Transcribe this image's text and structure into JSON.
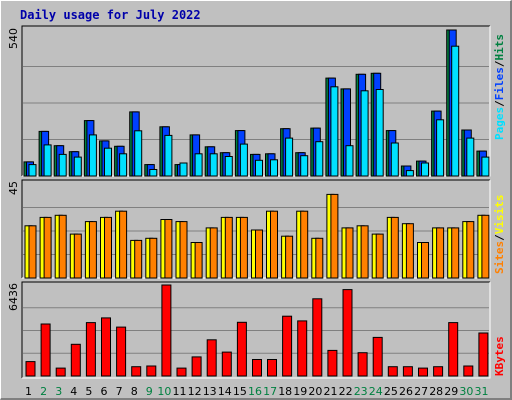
{
  "title": "Daily usage for July 2022",
  "colors": {
    "hits": "#008040",
    "files": "#0040ff",
    "pages": "#00e0ff",
    "visits": "#ffff00",
    "sites": "#ff8000",
    "kbytes": "#ff0000",
    "weekend_label": "#008040",
    "weekday_label": "#000000"
  },
  "chart_data": [
    {
      "type": "bar",
      "panel": "top",
      "ymax_label": "540",
      "ylim": [
        0,
        540
      ],
      "legend": [
        "Pages",
        "/",
        "Files",
        "/",
        "Hits"
      ],
      "categories": [
        "1",
        "2",
        "3",
        "4",
        "5",
        "6",
        "7",
        "8",
        "9",
        "10",
        "11",
        "12",
        "13",
        "14",
        "15",
        "16",
        "17",
        "18",
        "19",
        "20",
        "21",
        "22",
        "23",
        "24",
        "25",
        "26",
        "27",
        "28",
        "29",
        "30",
        "31"
      ],
      "weekend": [
        "2",
        "3",
        "9",
        "10",
        "16",
        "17",
        "23",
        "24",
        "30",
        "31"
      ],
      "series": [
        {
          "name": "Hits",
          "values": [
            52,
            165,
            112,
            90,
            205,
            130,
            110,
            237,
            42,
            182,
            42,
            152,
            108,
            86,
            168,
            80,
            82,
            175,
            86,
            177,
            362,
            322,
            376,
            380,
            168,
            37,
            55,
            240,
            540,
            170,
            92
          ]
        },
        {
          "name": "Files",
          "values": [
            52,
            165,
            112,
            90,
            205,
            130,
            110,
            237,
            42,
            182,
            42,
            152,
            108,
            86,
            168,
            80,
            82,
            175,
            86,
            177,
            362,
            322,
            376,
            380,
            168,
            37,
            55,
            240,
            540,
            170,
            92
          ]
        },
        {
          "name": "Pages",
          "values": [
            42,
            115,
            80,
            70,
            152,
            103,
            82,
            167,
            24,
            150,
            48,
            82,
            82,
            72,
            118,
            58,
            60,
            140,
            75,
            127,
            330,
            112,
            315,
            320,
            122,
            20,
            48,
            208,
            480,
            140,
            70
          ]
        }
      ]
    },
    {
      "type": "bar",
      "panel": "middle",
      "ymax_label": "45",
      "ylim": [
        0,
        45
      ],
      "legend": [
        "Sites",
        "/",
        "Visits"
      ],
      "series": [
        {
          "name": "Visits",
          "values": [
            25,
            29,
            30,
            21,
            27,
            29,
            32,
            18,
            19,
            28,
            27,
            17,
            24,
            29,
            29,
            23,
            32,
            20,
            32,
            19,
            40,
            24,
            25,
            21,
            29,
            26,
            17,
            24,
            24,
            27,
            30
          ]
        },
        {
          "name": "Sites",
          "values": [
            25,
            29,
            30,
            21,
            27,
            29,
            32,
            18,
            19,
            28,
            27,
            17,
            24,
            29,
            29,
            23,
            32,
            20,
            32,
            19,
            40,
            24,
            25,
            21,
            29,
            26,
            17,
            24,
            24,
            27,
            30
          ]
        }
      ]
    },
    {
      "type": "bar",
      "panel": "bottom",
      "ymax_label": "6436",
      "ylim": [
        0,
        6436
      ],
      "legend": [
        "KBytes"
      ],
      "series": [
        {
          "name": "KBytes",
          "values": [
            1020,
            3680,
            560,
            2240,
            3780,
            4110,
            3460,
            660,
            710,
            6436,
            560,
            1350,
            2560,
            1690,
            3800,
            1170,
            1170,
            4230,
            3900,
            5460,
            1810,
            6110,
            1650,
            2730,
            660,
            660,
            560,
            660,
            3780,
            710,
            3040
          ]
        }
      ]
    }
  ]
}
